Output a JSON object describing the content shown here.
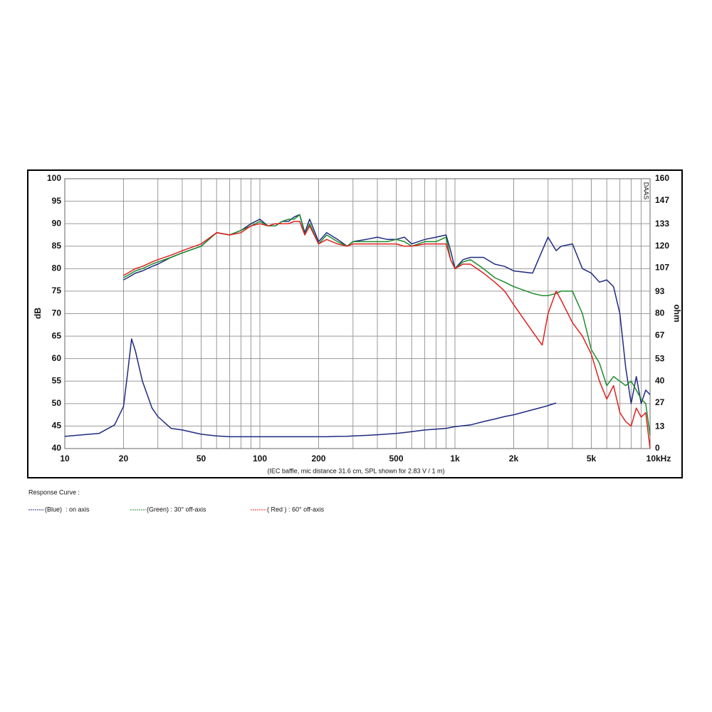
{
  "chart_data": {
    "type": "line",
    "ylabel": "dB",
    "y2label": "ohm",
    "note": "(IEC baffle, mic distance 31.6 cm, SPL shown for 2.83 V / 1 m)",
    "watermark": "DAAS",
    "legend_title": "Response Curve :",
    "log_x": true,
    "grid": true,
    "xlim": [
      10,
      10000
    ],
    "xticks": [
      10,
      20,
      50,
      100,
      200,
      500,
      {
        "value": 1000,
        "label": "1k"
      },
      {
        "value": 2000,
        "label": "2k"
      },
      {
        "value": 5000,
        "label": "5k"
      },
      {
        "value": 10000,
        "label": "10kHz"
      }
    ],
    "ylim": [
      40,
      100
    ],
    "yticks": [
      40,
      45,
      50,
      55,
      60,
      65,
      70,
      75,
      80,
      85,
      90,
      95,
      100
    ],
    "y2lim": [
      0,
      160
    ],
    "y2ticks": [
      0,
      13,
      27,
      40,
      53,
      67,
      80,
      93,
      107,
      120,
      133,
      147,
      160
    ],
    "x": [
      10,
      15,
      18,
      20,
      21,
      22,
      23,
      25,
      28,
      30,
      35,
      40,
      50,
      60,
      70,
      80,
      90,
      100,
      110,
      120,
      130,
      140,
      150,
      160,
      170,
      180,
      200,
      220,
      250,
      280,
      300,
      350,
      400,
      450,
      500,
      550,
      600,
      700,
      800,
      900,
      950,
      1000,
      1100,
      1200,
      1400,
      1600,
      1800,
      2000,
      2500,
      2800,
      3000,
      3300,
      3500,
      4000,
      4500,
      5000,
      5500,
      6000,
      6500,
      7000,
      7500,
      8000,
      8500,
      9000,
      9500,
      10000
    ],
    "series": [
      {
        "name": "(Blue)  : on axis",
        "color": "#1f2a80",
        "values": [
          null,
          null,
          null,
          77.5,
          78,
          78.5,
          79,
          79.5,
          80.5,
          81,
          82.5,
          83.5,
          85,
          88,
          87.5,
          88.5,
          90,
          91,
          89.5,
          89.5,
          90.5,
          90.5,
          91.5,
          92,
          88,
          91,
          86,
          88,
          86.5,
          85,
          86,
          86.5,
          87,
          86.5,
          86.5,
          87,
          85.5,
          86.5,
          87,
          87.5,
          84,
          80,
          82,
          82.5,
          82.5,
          81,
          80.5,
          79.5,
          79,
          84,
          87,
          84,
          85,
          85.5,
          80,
          79,
          77,
          77.5,
          76,
          70,
          58,
          50,
          56,
          50,
          53,
          52
        ]
      },
      {
        "name": "(Green) : 30° off-axis",
        "color": "#1c8c2c",
        "values": [
          null,
          null,
          null,
          78,
          78.5,
          79,
          79.5,
          80,
          81,
          81.5,
          82.5,
          83.5,
          85,
          88,
          87.5,
          88.5,
          89.5,
          90.5,
          89.5,
          89.5,
          90.5,
          91,
          91,
          92,
          87.5,
          90,
          85.5,
          87.5,
          86,
          85,
          86,
          86,
          86,
          86,
          86.5,
          86,
          85,
          86,
          86,
          87,
          82,
          80,
          81.5,
          82,
          80,
          78,
          77,
          76,
          74.5,
          74,
          74,
          74.5,
          75,
          75,
          70,
          62,
          59,
          54,
          56,
          55,
          54,
          55,
          53,
          51,
          50,
          43
        ]
      },
      {
        "name": "( Red ) : 60° off-axis",
        "color": "#e0201e",
        "values": [
          null,
          null,
          null,
          78.5,
          79,
          79.5,
          80,
          80.5,
          81.5,
          82,
          83,
          84,
          85.5,
          88,
          87.5,
          88,
          89.5,
          90,
          89.5,
          90,
          90,
          90,
          90.5,
          90.5,
          87.5,
          89.5,
          85.5,
          86.5,
          85.5,
          85,
          85.5,
          85.5,
          85.5,
          85.5,
          85.5,
          85,
          85,
          85.5,
          85.5,
          85.5,
          82,
          80,
          81,
          81,
          79,
          77,
          75,
          72,
          66,
          63,
          70,
          75,
          73,
          68,
          65,
          61,
          55,
          51,
          54,
          48,
          46,
          45,
          49,
          47,
          48,
          40
        ]
      },
      {
        "color": "#1f2a80",
        "axis": "y2",
        "values": [
          7.2,
          9,
          14,
          25,
          45,
          65,
          58,
          40,
          24,
          19,
          12,
          11,
          8.5,
          7.5,
          7,
          7,
          7,
          7,
          7,
          7,
          7,
          7,
          7,
          7,
          7,
          7,
          7,
          7,
          7.2,
          7.3,
          7.5,
          7.8,
          8.2,
          8.6,
          9,
          9.5,
          10,
          11,
          11.5,
          12,
          12.5,
          13,
          13.5,
          14,
          16,
          17.5,
          19,
          20,
          23,
          24.5,
          25.5,
          27,
          null,
          null,
          null,
          null,
          null,
          null,
          null,
          null,
          null,
          null,
          null,
          null,
          null,
          null
        ]
      }
    ]
  }
}
